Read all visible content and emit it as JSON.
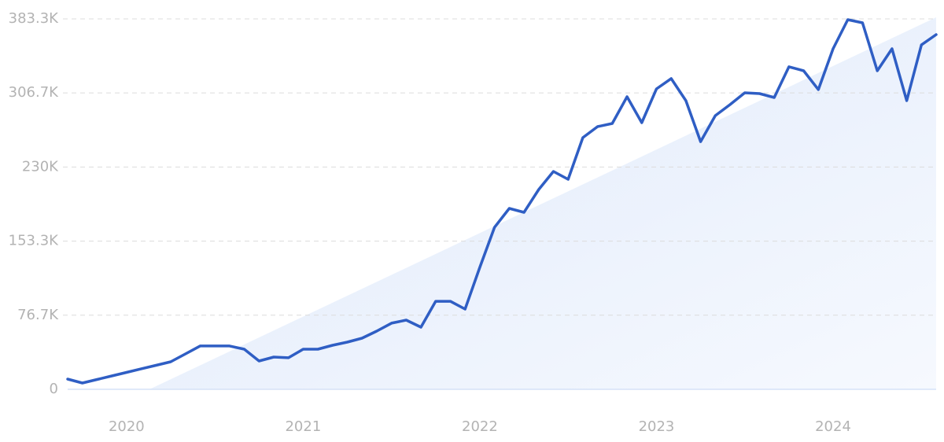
{
  "chart_data": {
    "type": "line",
    "categories": [
      null,
      null,
      null,
      null,
      "2020",
      null,
      null,
      null,
      null,
      null,
      null,
      null,
      null,
      null,
      null,
      null,
      "2021",
      null,
      null,
      null,
      null,
      null,
      null,
      null,
      null,
      null,
      null,
      null,
      "2022",
      null,
      null,
      null,
      null,
      null,
      null,
      null,
      null,
      null,
      null,
      null,
      "2023",
      null,
      null,
      null,
      null,
      null,
      null,
      null,
      null,
      null,
      null,
      null,
      "2024",
      null,
      null,
      null,
      null,
      null,
      null,
      null
    ],
    "series": [
      {
        "color": "#2f5ec4",
        "values": [
          10600,
          6500,
          10200,
          13800,
          17500,
          21200,
          24800,
          28500,
          36600,
          44800,
          44800,
          44800,
          41500,
          29300,
          33400,
          32600,
          41500,
          41500,
          45600,
          48800,
          52900,
          60200,
          68400,
          71600,
          64300,
          91100,
          91100,
          83000,
          126100,
          167600,
          187200,
          183100,
          206700,
          225400,
          217300,
          260400,
          271800,
          275100,
          302700,
          275900,
          310900,
          321500,
          298700,
          256300,
          283200,
          294600,
          306800,
          306000,
          301900,
          333700,
          329600,
          310100,
          352400,
          382500,
          379200,
          329600,
          352400,
          298700,
          356400,
          367000
        ]
      }
    ],
    "ylim": [
      0,
      383300
    ],
    "yticks": [
      0,
      {
        "value": 76700,
        "label": "76.7K"
      },
      {
        "value": 153300,
        "label": "153.3K"
      },
      {
        "value": 230000,
        "label": "230K"
      },
      {
        "value": 306700,
        "label": "306.7K"
      },
      {
        "value": 383300,
        "label": "383.3K"
      }
    ],
    "grid": true
  }
}
